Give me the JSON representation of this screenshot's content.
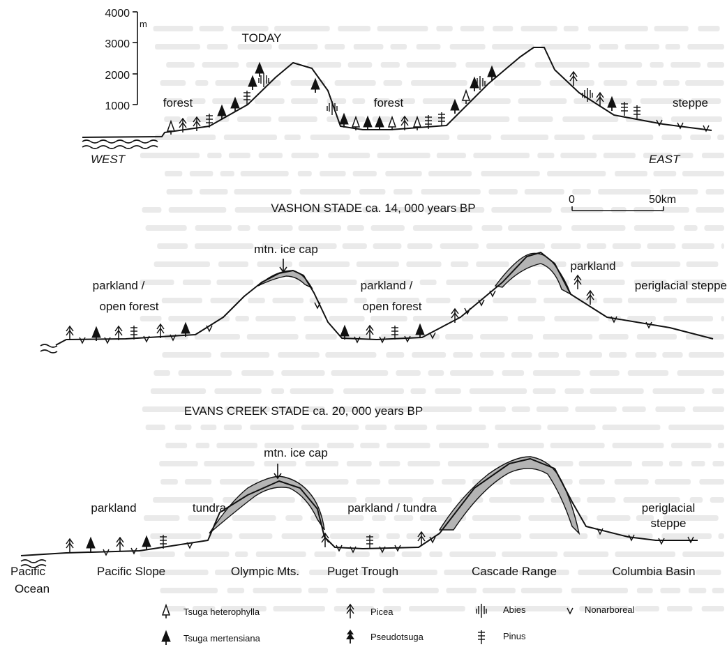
{
  "scale": {
    "unit": "m",
    "ticks": [
      "4000",
      "3000",
      "2000",
      "1000"
    ],
    "km_zero": "0",
    "km_fifty": "50km"
  },
  "today": {
    "title": "TODAY",
    "labels": {
      "forest_west": "forest",
      "forest_mid": "forest",
      "steppe": "steppe"
    },
    "west": "WEST",
    "east": "EAST"
  },
  "vashon": {
    "title": "VASHON   STADE   ca. 14, 000 years BP",
    "labels": {
      "ice_cap": "mtn. ice cap",
      "parkland_open_1": "parkland /",
      "parkland_open_2": "open forest",
      "mid_1": "parkland /",
      "mid_2": "open forest",
      "parkland_east": "parkland",
      "periglacial": "periglacial steppe"
    }
  },
  "evans": {
    "title": "EVANS   CREEK   STADE        ca. 20, 000 years BP",
    "labels": {
      "ice_cap": "mtn. ice cap",
      "parkland": "parkland",
      "tundra": "tundra",
      "parkland_tundra": "parkland / tundra",
      "periglacial_1": "periglacial",
      "periglacial_2": "steppe"
    }
  },
  "regions": {
    "pacific": "Pacific",
    "ocean": "Ocean",
    "pacific_slope": "Pacific Slope",
    "olympic": "Olympic Mts.",
    "puget": "Puget Trough",
    "cascade": "Cascade Range",
    "columbia": "Columbia Basin"
  },
  "legend": {
    "tsuga_het": "Tsuga heterophylla",
    "tsuga_mert": "Tsuga mertensiana",
    "picea": "Picea",
    "pseudotsuga": "Pseudotsuga",
    "abies": "Abies",
    "pinus": "Pinus",
    "nonarboreal": "Nonarboreal"
  },
  "icon_names": [
    "tsuga-heterophylla-icon",
    "tsuga-mertensiana-icon",
    "picea-icon",
    "pseudotsuga-icon",
    "abies-icon",
    "pinus-icon",
    "nonarboreal-icon"
  ],
  "colors": {
    "ink": "#111111",
    "ice": "#b4b4b4",
    "bleed_text": "#d9d9d9"
  }
}
